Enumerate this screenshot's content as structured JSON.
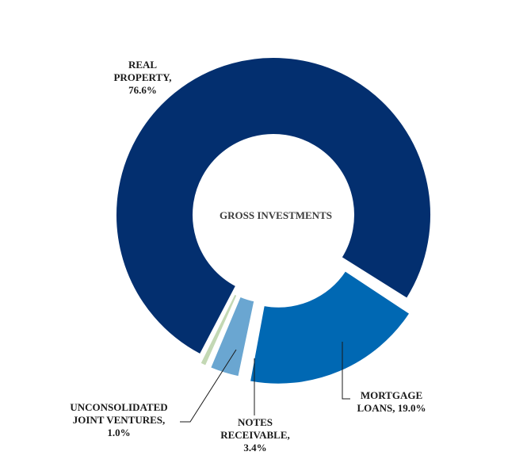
{
  "chart_data": {
    "type": "pie",
    "center_label": "GROSS INVESTMENTS",
    "slices": [
      {
        "key": "real",
        "label_lines": [
          "REAL",
          "PROPERTY,",
          "76.6%"
        ],
        "value": 76.6,
        "color": "#032f6f"
      },
      {
        "key": "mortgage",
        "label_lines": [
          "MORTGAGE",
          "LOANS, 19.0%"
        ],
        "value": 19.0,
        "color": "#0068b3"
      },
      {
        "key": "notes",
        "label_lines": [
          "NOTES",
          "RECEIVABLE,",
          "3.4%"
        ],
        "value": 3.4,
        "color": "#6aa6d1"
      },
      {
        "key": "jv",
        "label_lines": [
          "UNCONSOLIDATED",
          "JOINT VENTURES,",
          "1.0%"
        ],
        "value": 1.0,
        "color": "#c3d8b4"
      }
    ]
  }
}
